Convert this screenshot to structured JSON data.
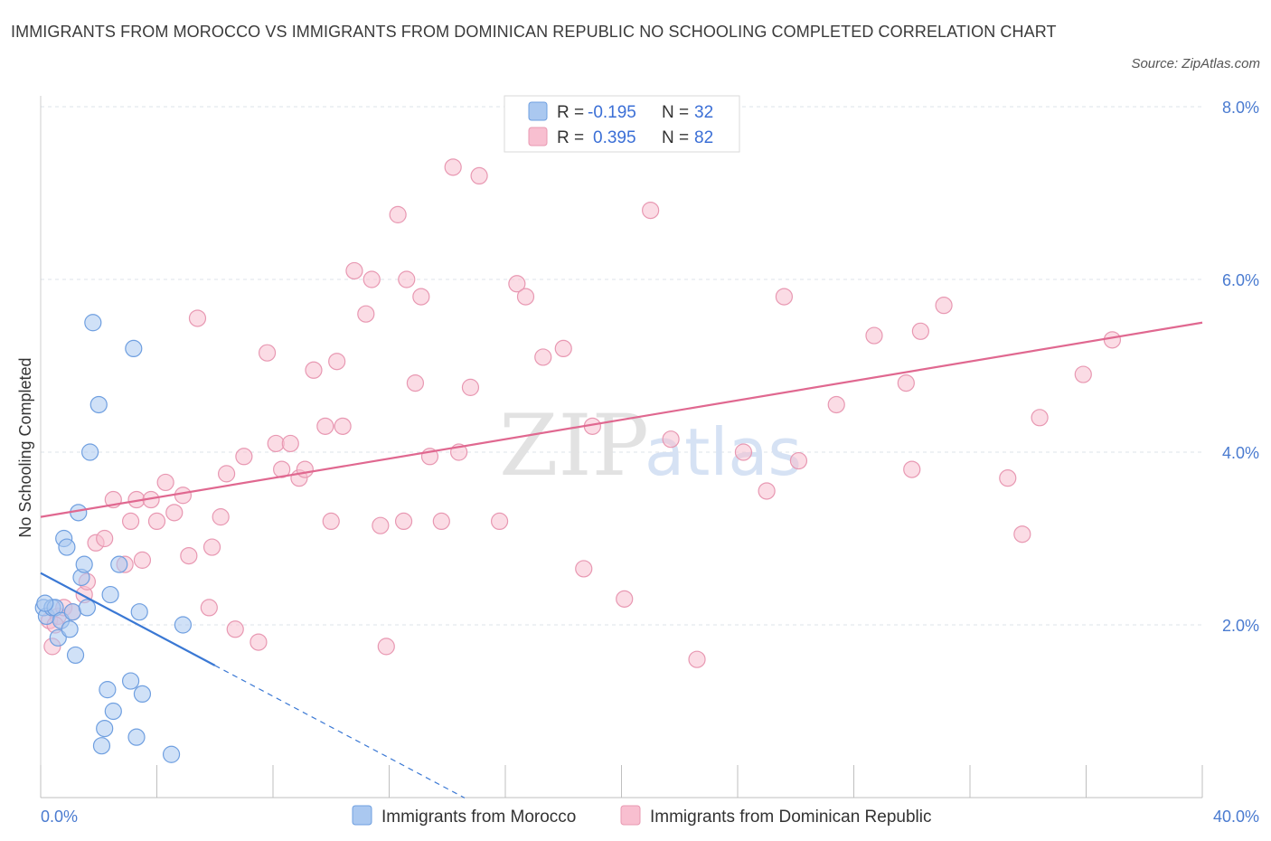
{
  "title": "IMMIGRANTS FROM MOROCCO VS IMMIGRANTS FROM DOMINICAN REPUBLIC NO SCHOOLING COMPLETED CORRELATION CHART",
  "source": "Source: ZipAtlas.com",
  "watermark": {
    "zip": "ZIP",
    "atlas": "atlas"
  },
  "colors": {
    "morocco_fill": "#aac8f0",
    "morocco_stroke": "#6f9fe0",
    "morocco_line": "#3a78d4",
    "dr_fill": "#f8bfd0",
    "dr_stroke": "#e898b2",
    "dr_line": "#e06890",
    "grid": "#dde3ea",
    "tick_text": "#4a7bd0"
  },
  "legend": {
    "rows": [
      {
        "r_label": "R =",
        "r_value": "-0.195",
        "n_label": "N =",
        "n_value": "32"
      },
      {
        "r_label": "R =",
        "r_value": "0.395",
        "n_label": "N =",
        "n_value": "82"
      }
    ]
  },
  "chart_data": {
    "type": "scatter",
    "title": "IMMIGRANTS FROM MOROCCO VS IMMIGRANTS FROM DOMINICAN REPUBLIC NO SCHOOLING COMPLETED CORRELATION CHART",
    "xlabel": "",
    "ylabel": "No Schooling Completed",
    "xlim": [
      0,
      40
    ],
    "ylim": [
      0,
      8
    ],
    "x_tick_labels": {
      "left": "0.0%",
      "right": "40.0%"
    },
    "y_ticks": [
      {
        "value": 2,
        "label": "2.0%"
      },
      {
        "value": 4,
        "label": "4.0%"
      },
      {
        "value": 6,
        "label": "6.0%"
      },
      {
        "value": 8,
        "label": "8.0%"
      }
    ],
    "series": [
      {
        "name": "Immigrants from Morocco",
        "r": -0.195,
        "n": 32,
        "trend": {
          "x0": 0,
          "y0": 2.6,
          "x1": 6.0,
          "y1": 1.53,
          "dash_to_x": 14.6
        },
        "points": [
          [
            0.1,
            2.2
          ],
          [
            0.2,
            2.1
          ],
          [
            0.4,
            2.2
          ],
          [
            0.5,
            2.2
          ],
          [
            0.6,
            1.85
          ],
          [
            0.7,
            2.05
          ],
          [
            0.8,
            3.0
          ],
          [
            0.9,
            2.9
          ],
          [
            1.0,
            1.95
          ],
          [
            1.1,
            2.15
          ],
          [
            1.2,
            1.65
          ],
          [
            1.3,
            3.3
          ],
          [
            1.4,
            2.55
          ],
          [
            1.5,
            2.7
          ],
          [
            1.6,
            2.2
          ],
          [
            1.7,
            4.0
          ],
          [
            1.8,
            5.5
          ],
          [
            2.0,
            4.55
          ],
          [
            2.1,
            0.6
          ],
          [
            2.2,
            0.8
          ],
          [
            2.3,
            1.25
          ],
          [
            2.4,
            2.35
          ],
          [
            2.5,
            1.0
          ],
          [
            2.7,
            2.7
          ],
          [
            3.1,
            1.35
          ],
          [
            3.2,
            5.2
          ],
          [
            3.3,
            0.7
          ],
          [
            3.4,
            2.15
          ],
          [
            3.5,
            1.2
          ],
          [
            4.5,
            0.5
          ],
          [
            4.9,
            2.0
          ],
          [
            0.15,
            2.25
          ]
        ]
      },
      {
        "name": "Immigrants from Dominican Republic",
        "r": 0.395,
        "n": 82,
        "trend": {
          "x0": 0,
          "y0": 3.25,
          "x1": 40,
          "y1": 5.5
        },
        "points": [
          [
            0.3,
            2.05
          ],
          [
            0.4,
            1.75
          ],
          [
            0.6,
            2.1
          ],
          [
            0.8,
            2.2
          ],
          [
            1.5,
            2.35
          ],
          [
            1.6,
            2.5
          ],
          [
            1.9,
            2.95
          ],
          [
            2.2,
            3.0
          ],
          [
            2.5,
            3.45
          ],
          [
            2.9,
            2.7
          ],
          [
            3.1,
            3.2
          ],
          [
            3.3,
            3.45
          ],
          [
            3.5,
            2.75
          ],
          [
            3.8,
            3.45
          ],
          [
            4.0,
            3.2
          ],
          [
            4.3,
            3.65
          ],
          [
            4.6,
            3.3
          ],
          [
            4.9,
            3.5
          ],
          [
            5.1,
            2.8
          ],
          [
            5.4,
            5.55
          ],
          [
            5.8,
            2.2
          ],
          [
            5.9,
            2.9
          ],
          [
            6.2,
            3.25
          ],
          [
            6.4,
            3.75
          ],
          [
            6.7,
            1.95
          ],
          [
            7.0,
            3.95
          ],
          [
            7.5,
            1.8
          ],
          [
            7.8,
            5.15
          ],
          [
            8.1,
            4.1
          ],
          [
            8.3,
            3.8
          ],
          [
            8.6,
            4.1
          ],
          [
            8.9,
            3.7
          ],
          [
            9.1,
            3.8
          ],
          [
            9.4,
            4.95
          ],
          [
            9.8,
            4.3
          ],
          [
            10.0,
            3.2
          ],
          [
            10.2,
            5.05
          ],
          [
            10.4,
            4.3
          ],
          [
            10.8,
            6.1
          ],
          [
            11.2,
            5.6
          ],
          [
            11.4,
            6.0
          ],
          [
            11.7,
            3.15
          ],
          [
            11.9,
            1.75
          ],
          [
            12.3,
            6.75
          ],
          [
            12.5,
            3.2
          ],
          [
            12.6,
            6.0
          ],
          [
            12.9,
            4.8
          ],
          [
            13.1,
            5.8
          ],
          [
            13.4,
            3.95
          ],
          [
            13.8,
            3.2
          ],
          [
            14.2,
            7.3
          ],
          [
            14.4,
            4.0
          ],
          [
            14.8,
            4.75
          ],
          [
            15.1,
            7.2
          ],
          [
            15.8,
            3.2
          ],
          [
            16.4,
            5.95
          ],
          [
            16.7,
            5.8
          ],
          [
            17.3,
            5.1
          ],
          [
            18.0,
            5.2
          ],
          [
            18.7,
            2.65
          ],
          [
            19.0,
            4.3
          ],
          [
            20.1,
            2.3
          ],
          [
            21.0,
            6.8
          ],
          [
            21.7,
            4.15
          ],
          [
            22.6,
            1.6
          ],
          [
            24.2,
            4.0
          ],
          [
            25.0,
            3.55
          ],
          [
            25.6,
            5.8
          ],
          [
            26.1,
            3.9
          ],
          [
            27.4,
            4.55
          ],
          [
            28.7,
            5.35
          ],
          [
            29.8,
            4.8
          ],
          [
            30.0,
            3.8
          ],
          [
            30.3,
            5.4
          ],
          [
            31.1,
            5.7
          ],
          [
            33.3,
            3.7
          ],
          [
            33.8,
            3.05
          ],
          [
            34.4,
            4.4
          ],
          [
            35.9,
            4.9
          ],
          [
            36.9,
            5.3
          ],
          [
            0.5,
            2.0
          ],
          [
            1.1,
            2.15
          ]
        ]
      }
    ],
    "legend_position": "top-center"
  }
}
